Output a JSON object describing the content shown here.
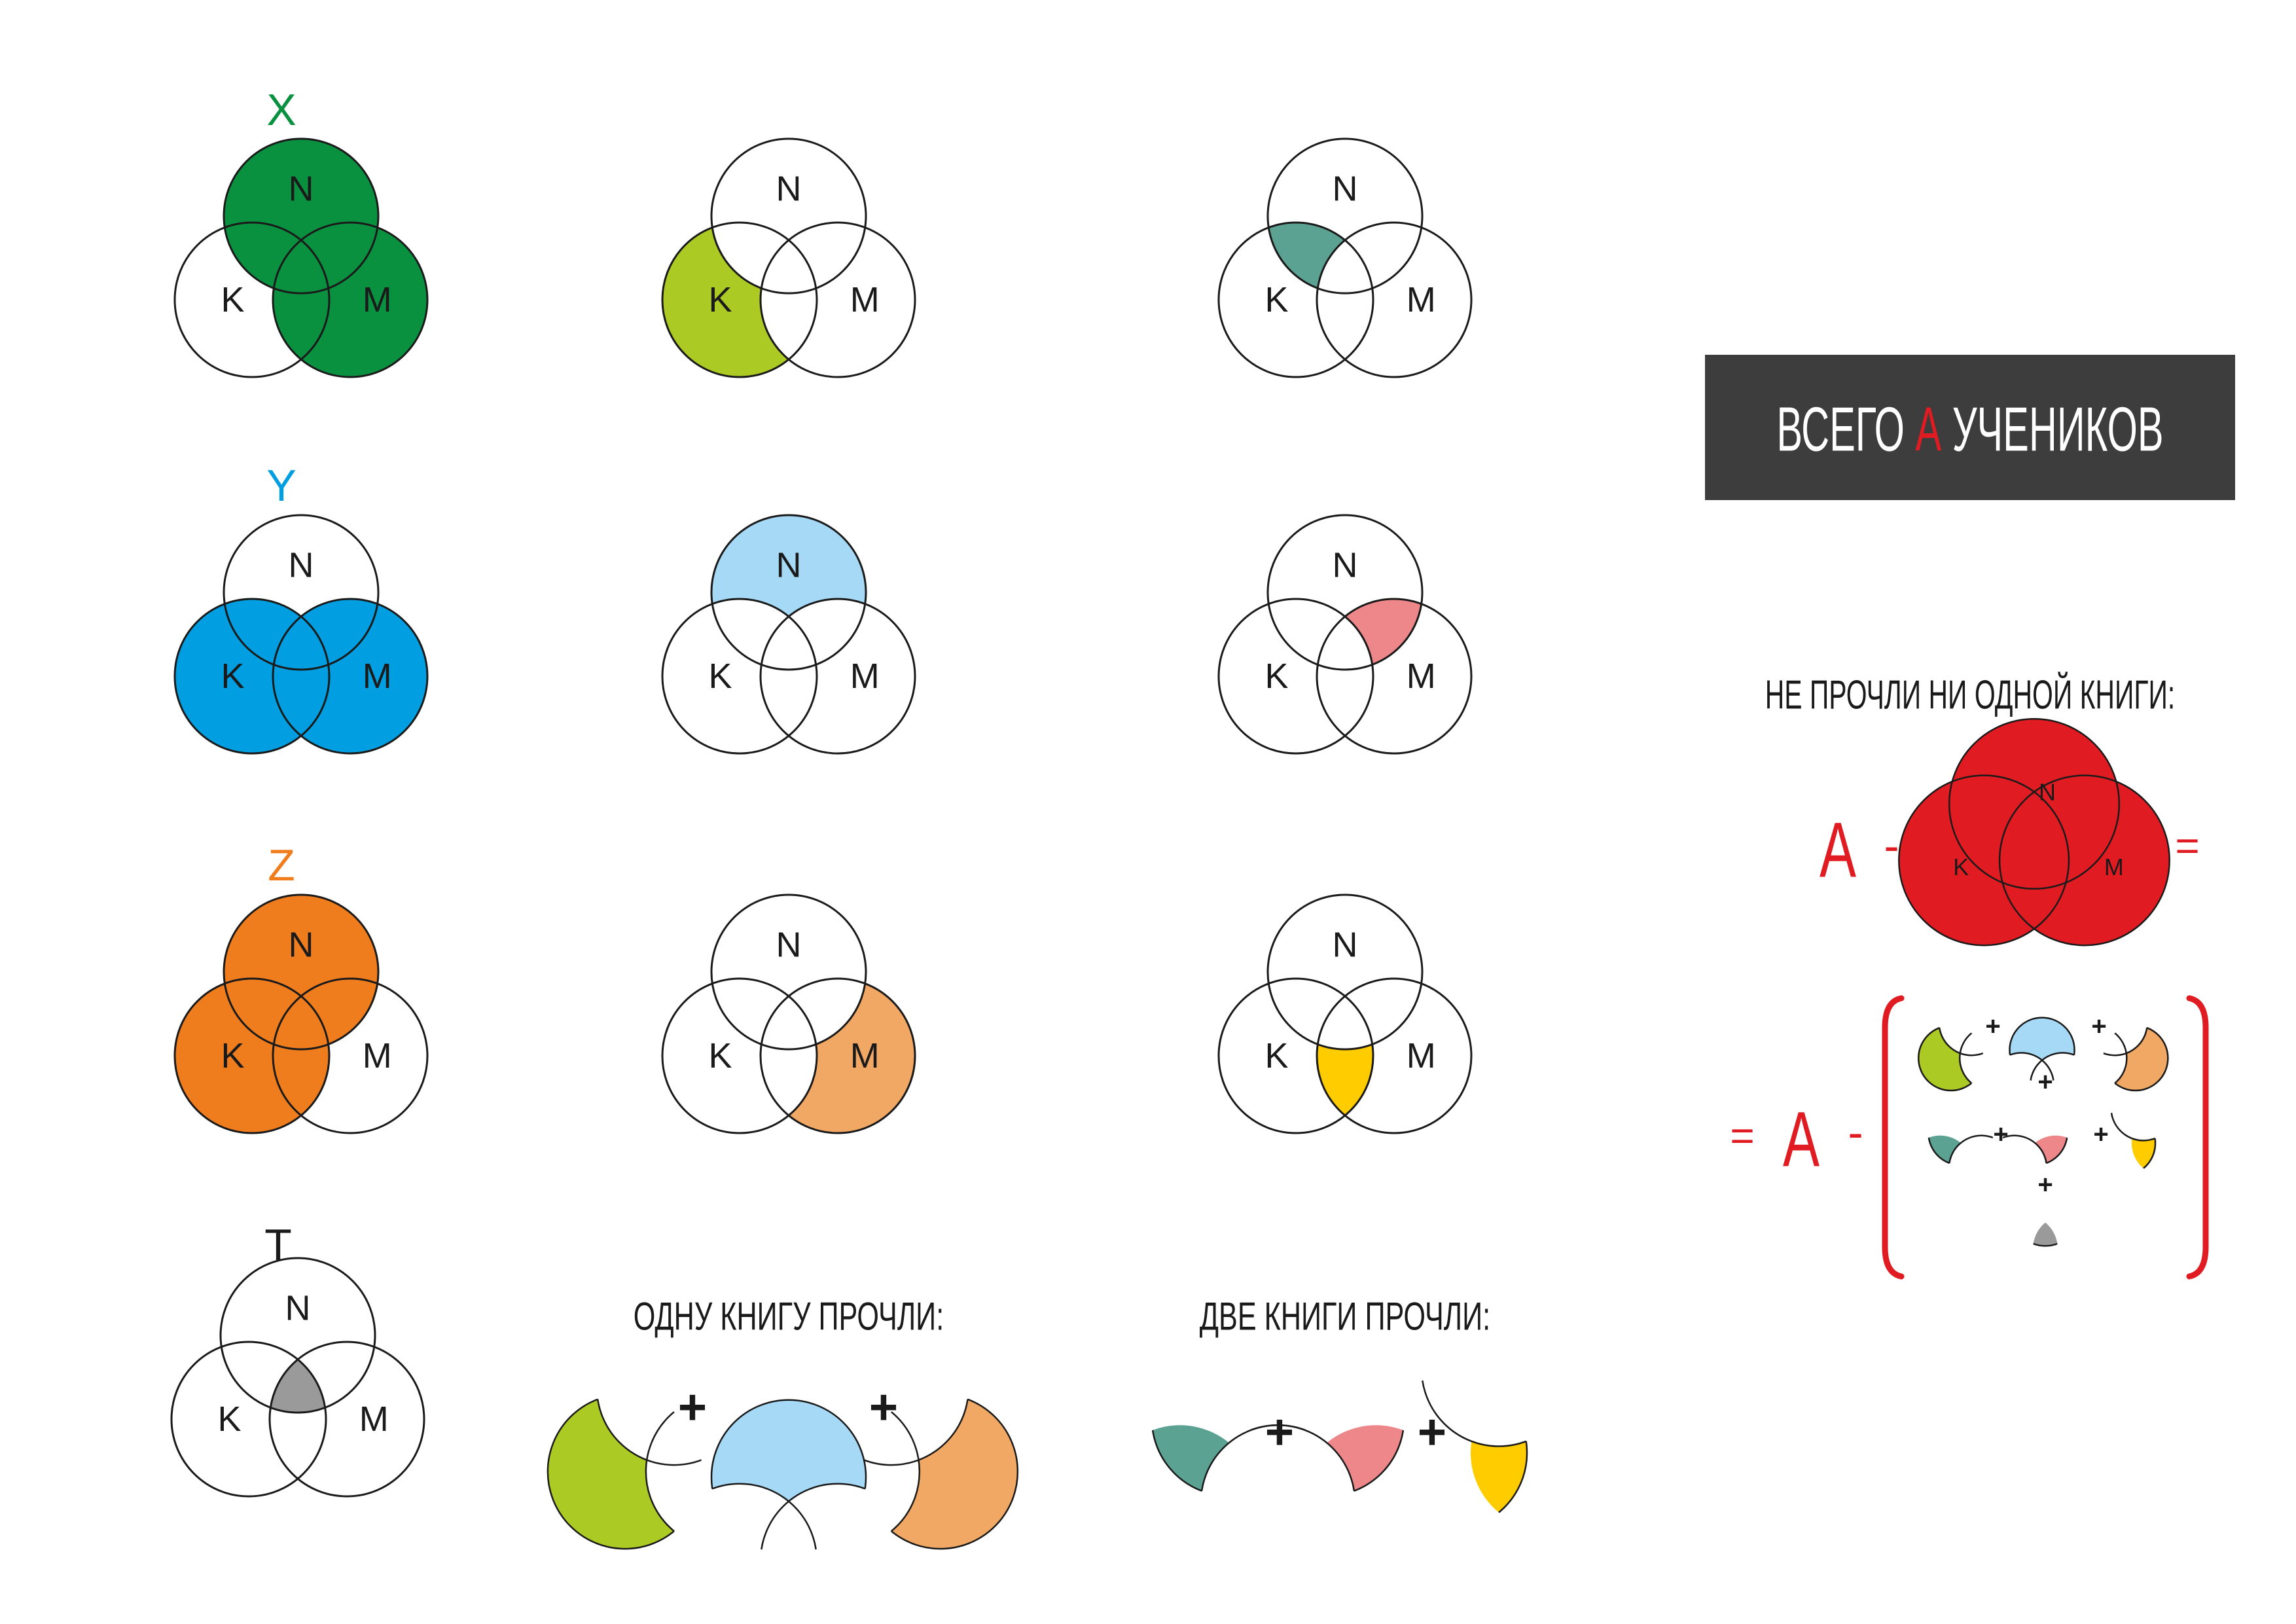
{
  "colors": {
    "x": "#0a9140",
    "y": "#019fe1",
    "z": "#ef7d1e",
    "k_only": "#acca24",
    "n_only": "#a5d9f5",
    "m_only": "#f2a865",
    "nk": "#5ba292",
    "nm": "#ee878a",
    "km": "#ffcc00",
    "all": "#9a9a9a",
    "union": "#e11b22",
    "accent_red": "#e11b22",
    "banner_bg": "#3d3d3d",
    "stroke": "#1a1a1a"
  },
  "circle_labels": {
    "n": "N",
    "k": "K",
    "m": "M"
  },
  "row_titles": {
    "x": "X",
    "y": "Y",
    "z": "Z",
    "t": "T"
  },
  "banner": {
    "prefix": "ВСЕГО ",
    "var": "A",
    "suffix": " УЧЕНИКОВ"
  },
  "captions": {
    "one_book": "ОДНУ КНИГУ ПРОЧЛИ:",
    "two_books": "ДВЕ КНИГИ ПРОЧЛИ:",
    "no_books": "НЕ ПРОЧЛИ НИ ОДНОЙ КНИГИ:"
  },
  "formula": {
    "var": "A",
    "minus": "-",
    "equals": "=",
    "plus": "+"
  }
}
